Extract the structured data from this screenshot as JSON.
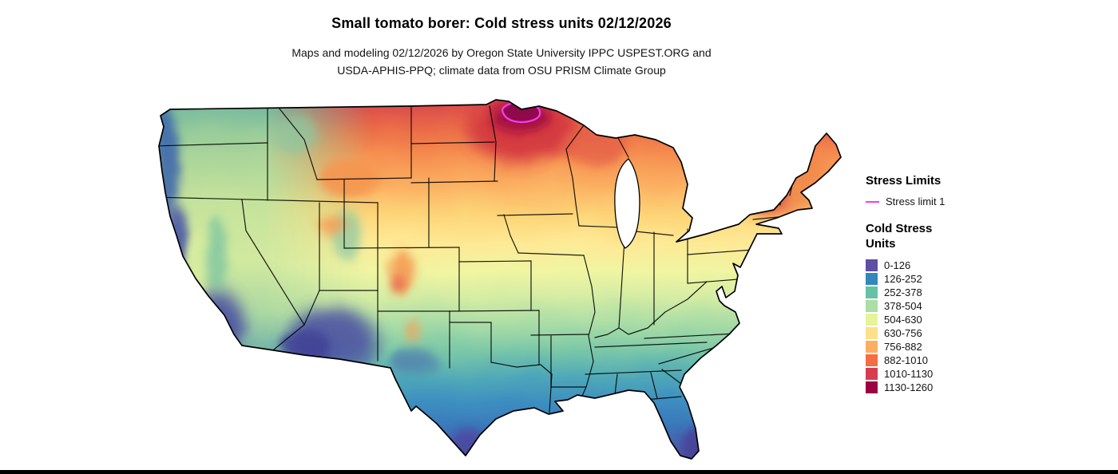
{
  "page": {
    "background_color": "#ffffff",
    "bottom_bar_color": "#000000"
  },
  "header": {
    "title": "Small tomato borer: Cold stress units 02/12/2026",
    "subtitle_line1": "Maps and modeling 02/12/2026 by Oregon State University IPPC USPEST.ORG and",
    "subtitle_line2": "USDA-APHIS-PPQ; climate data from OSU PRISM Climate Group"
  },
  "map": {
    "region": "Contiguous United States"
  },
  "legend": {
    "stress_limits": {
      "title": "Stress Limits",
      "items": [
        {
          "label": "Stress limit 1",
          "color": "#ee3df0"
        }
      ]
    },
    "cold_stress": {
      "title_line1": "Cold Stress",
      "title_line2": "Units",
      "classes": [
        {
          "label": "0-126",
          "color": "#5e4fa2"
        },
        {
          "label": "126-252",
          "color": "#3288bd"
        },
        {
          "label": "252-378",
          "color": "#66c2a5"
        },
        {
          "label": "378-504",
          "color": "#abdda4"
        },
        {
          "label": "504-630",
          "color": "#e6f598"
        },
        {
          "label": "630-756",
          "color": "#fee08b"
        },
        {
          "label": "756-882",
          "color": "#fdae61"
        },
        {
          "label": "882-1010",
          "color": "#f46d43"
        },
        {
          "label": "1010-1130",
          "color": "#d53e4f"
        },
        {
          "label": "1130-1260",
          "color": "#9e0142"
        }
      ]
    }
  }
}
